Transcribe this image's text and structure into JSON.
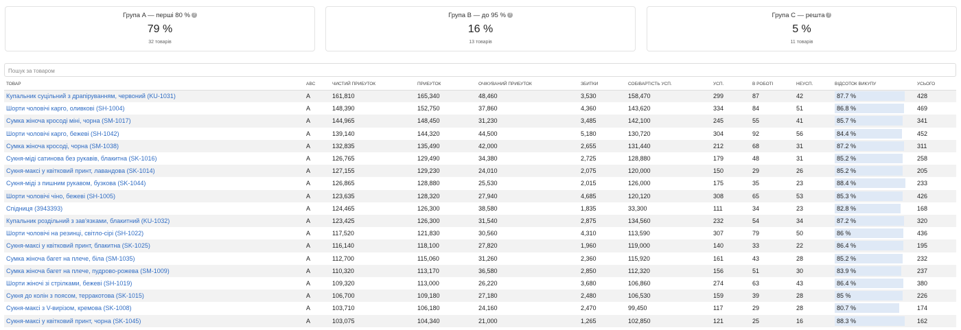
{
  "cards": [
    {
      "title": "Група A — перші 80 %",
      "value": "79 %",
      "count": "32 товарів"
    },
    {
      "title": "Група B — до 95 %",
      "value": "16 %",
      "count": "13 товарів"
    },
    {
      "title": "Група C — решта",
      "value": "5 %",
      "count": "11 товарів"
    }
  ],
  "search_placeholder": "Пошук за товаром",
  "table": {
    "header": [
      "ТОВАР",
      "ABC",
      "ЧИСТИЙ ПРИБУТОК",
      "ПРИБУТОК",
      "ОЧІКУВАНИЙ ПРИБУТОК",
      "ЗБИТКИ",
      "СОБІВАРТІСТЬ УСП.",
      "УСП.",
      "В РОБОТІ",
      "НЕУСП.",
      "ВІДСОТОК ВИКУПУ",
      "УСЬОГО"
    ],
    "rows": [
      [
        "Купальник суцільний з драпіруванням, червоний (KU-1031)",
        "A",
        "161,810",
        "165,340",
        "48,460",
        "3,530",
        "158,470",
        "299",
        "87",
        "42",
        {
          "value": 87.7,
          "label": "87.7 %"
        },
        "428"
      ],
      [
        "Шорти чоловічі карго, оливкові (SH-1004)",
        "A",
        "148,390",
        "152,750",
        "37,860",
        "4,360",
        "143,620",
        "334",
        "84",
        "51",
        {
          "value": 86.8,
          "label": "86.8 %"
        },
        "469"
      ],
      [
        "Сумка жіноча кросоді міні, чорна (SM-1017)",
        "A",
        "144,965",
        "148,450",
        "31,230",
        "3,485",
        "142,100",
        "245",
        "55",
        "41",
        {
          "value": 85.7,
          "label": "85.7 %"
        },
        "341"
      ],
      [
        "Шорти чоловічі карго, бежеві (SH-1042)",
        "A",
        "139,140",
        "144,320",
        "44,500",
        "5,180",
        "130,720",
        "304",
        "92",
        "56",
        {
          "value": 84.4,
          "label": "84.4 %"
        },
        "452"
      ],
      [
        "Сумка жіноча кросоді, чорна (SM-1038)",
        "A",
        "132,835",
        "135,490",
        "42,000",
        "2,655",
        "131,440",
        "212",
        "68",
        "31",
        {
          "value": 87.2,
          "label": "87.2 %"
        },
        "311"
      ],
      [
        "Сукня-міді сатинова без рукавів, блакитна (SK-1016)",
        "A",
        "126,765",
        "129,490",
        "34,380",
        "2,725",
        "128,880",
        "179",
        "48",
        "31",
        {
          "value": 85.2,
          "label": "85.2 %"
        },
        "258"
      ],
      [
        "Сукня-максі у квітковий принт, лавандова (SK-1014)",
        "A",
        "127,155",
        "129,230",
        "24,010",
        "2,075",
        "120,000",
        "150",
        "29",
        "26",
        {
          "value": 85.2,
          "label": "85.2 %"
        },
        "205"
      ],
      [
        "Сукня-міді з пишним рукавом, бузкова (SK-1044)",
        "A",
        "126,865",
        "128,880",
        "25,530",
        "2,015",
        "126,000",
        "175",
        "35",
        "23",
        {
          "value": 88.4,
          "label": "88.4 %"
        },
        "233"
      ],
      [
        "Шорти чоловічі чіно, бежеві (SH-1005)",
        "A",
        "123,635",
        "128,320",
        "27,940",
        "4,685",
        "120,120",
        "308",
        "65",
        "53",
        {
          "value": 85.3,
          "label": "85.3 %"
        },
        "426"
      ],
      [
        "Спідниця (3943393)",
        "A",
        "124,465",
        "126,300",
        "38,580",
        "1,835",
        "33,300",
        "111",
        "34",
        "23",
        {
          "value": 82.8,
          "label": "82.8 %"
        },
        "168"
      ],
      [
        "Купальник роздільний з зав'язками, блакитний (KU-1032)",
        "A",
        "123,425",
        "126,300",
        "31,540",
        "2,875",
        "134,560",
        "232",
        "54",
        "34",
        {
          "value": 87.2,
          "label": "87.2 %"
        },
        "320"
      ],
      [
        "Шорти чоловічі на резинці, світло-сірі (SH-1022)",
        "A",
        "117,520",
        "121,830",
        "30,560",
        "4,310",
        "113,590",
        "307",
        "79",
        "50",
        {
          "value": 86,
          "label": "86 %"
        },
        "436"
      ],
      [
        "Сукня-максі у квітковий принт, блакитна (SK-1025)",
        "A",
        "116,140",
        "118,100",
        "27,820",
        "1,960",
        "119,000",
        "140",
        "33",
        "22",
        {
          "value": 86.4,
          "label": "86.4 %"
        },
        "195"
      ],
      [
        "Сумка жіноча багет на плече, біла (SM-1035)",
        "A",
        "112,700",
        "115,060",
        "31,260",
        "2,360",
        "115,920",
        "161",
        "43",
        "28",
        {
          "value": 85.2,
          "label": "85.2 %"
        },
        "232"
      ],
      [
        "Сумка жіноча багет на плече, пудрово-рожева (SM-1009)",
        "A",
        "110,320",
        "113,170",
        "36,580",
        "2,850",
        "112,320",
        "156",
        "51",
        "30",
        {
          "value": 83.9,
          "label": "83.9 %"
        },
        "237"
      ],
      [
        "Шорти жіночі зі стрілками, бежеві (SH-1019)",
        "A",
        "109,320",
        "113,000",
        "26,220",
        "3,680",
        "106,860",
        "274",
        "63",
        "43",
        {
          "value": 86.4,
          "label": "86.4 %"
        },
        "380"
      ],
      [
        "Сукня до колін з поясом, терракотова (SK-1015)",
        "A",
        "106,700",
        "109,180",
        "27,180",
        "2,480",
        "106,530",
        "159",
        "39",
        "28",
        {
          "value": 85,
          "label": "85 %"
        },
        "226"
      ],
      [
        "Сукня-максі з V-вирізом, кремова (SK-1008)",
        "A",
        "103,710",
        "106,180",
        "24,160",
        "2,470",
        "99,450",
        "117",
        "29",
        "28",
        {
          "value": 80.7,
          "label": "80.7 %"
        },
        "174"
      ],
      [
        "Сукня-максі у квітковий принт, чорна (SK-1045)",
        "A",
        "103,075",
        "104,340",
        "21,000",
        "1,265",
        "102,850",
        "121",
        "25",
        "16",
        {
          "value": 88.3,
          "label": "88.3 %"
        },
        "162"
      ]
    ]
  }
}
